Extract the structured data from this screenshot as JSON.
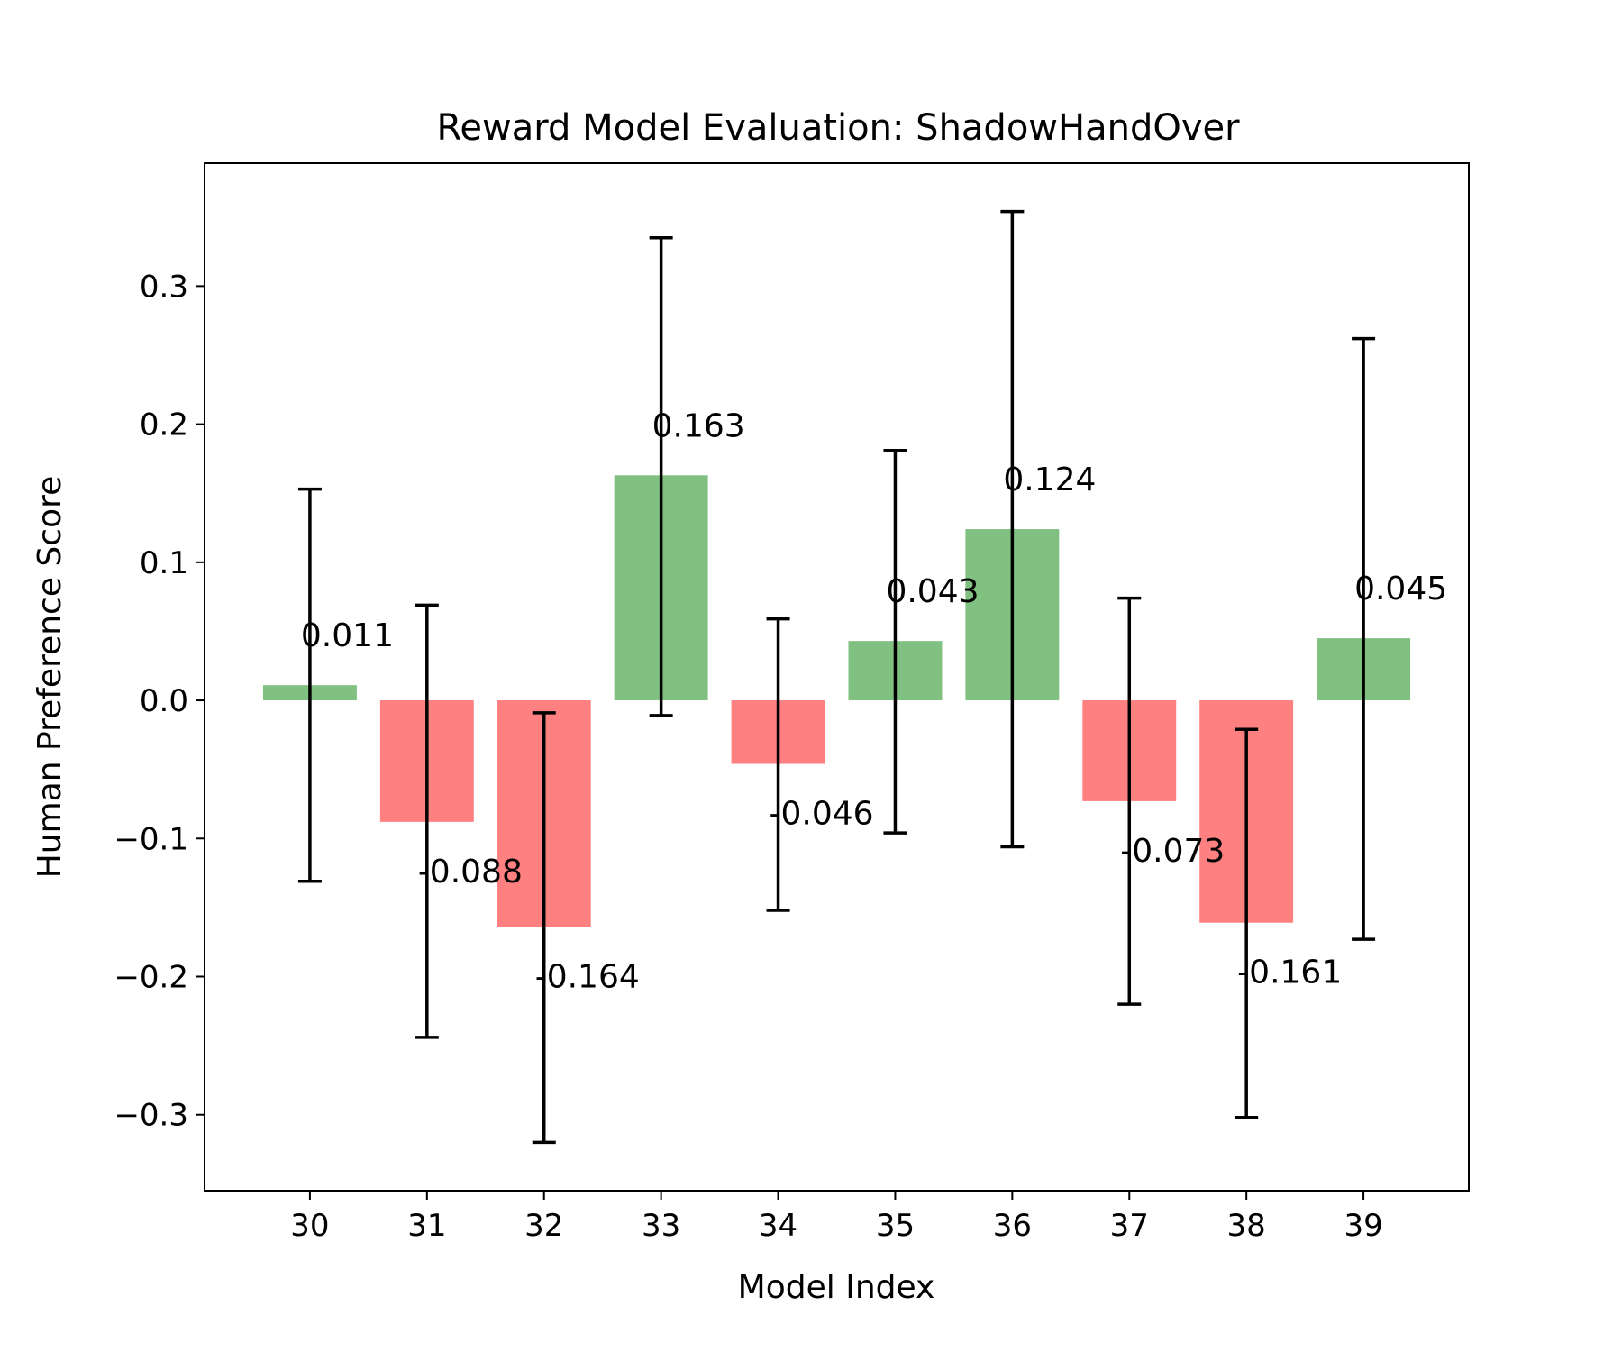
{
  "chart_data": {
    "type": "bar",
    "title": "Reward Model Evaluation: ShadowHandOver",
    "xlabel": "Model Index",
    "ylabel": "Human Preference Score",
    "categories": [
      "30",
      "31",
      "32",
      "33",
      "34",
      "35",
      "36",
      "37",
      "38",
      "39"
    ],
    "values": [
      0.011,
      -0.088,
      -0.164,
      0.163,
      -0.046,
      0.043,
      0.124,
      -0.073,
      -0.161,
      0.045
    ],
    "value_labels": [
      "0.011",
      "-0.088",
      "-0.164",
      "0.163",
      "-0.046",
      "0.043",
      "0.124",
      "-0.073",
      "-0.161",
      "0.045"
    ],
    "error_bars": [
      [
        -0.131,
        0.153
      ],
      [
        -0.244,
        0.069
      ],
      [
        -0.32,
        -0.009
      ],
      [
        -0.011,
        0.335
      ],
      [
        -0.152,
        0.059
      ],
      [
        -0.096,
        0.181
      ],
      [
        -0.106,
        0.354
      ],
      [
        -0.22,
        0.074
      ],
      [
        -0.302,
        -0.021
      ],
      [
        -0.173,
        0.262
      ]
    ],
    "ylim": [
      -0.355,
      0.389
    ],
    "yticks": [
      -0.3,
      -0.2,
      -0.1,
      0.0,
      0.1,
      0.2,
      0.3
    ],
    "ytick_labels": [
      "−0.3",
      "−0.2",
      "−0.1",
      "0.0",
      "0.1",
      "0.2",
      "0.3"
    ],
    "grid": false,
    "legend": "none",
    "colors": {
      "positive": "#80c080",
      "negative": "#ff8080",
      "errorbar": "#000000"
    }
  }
}
